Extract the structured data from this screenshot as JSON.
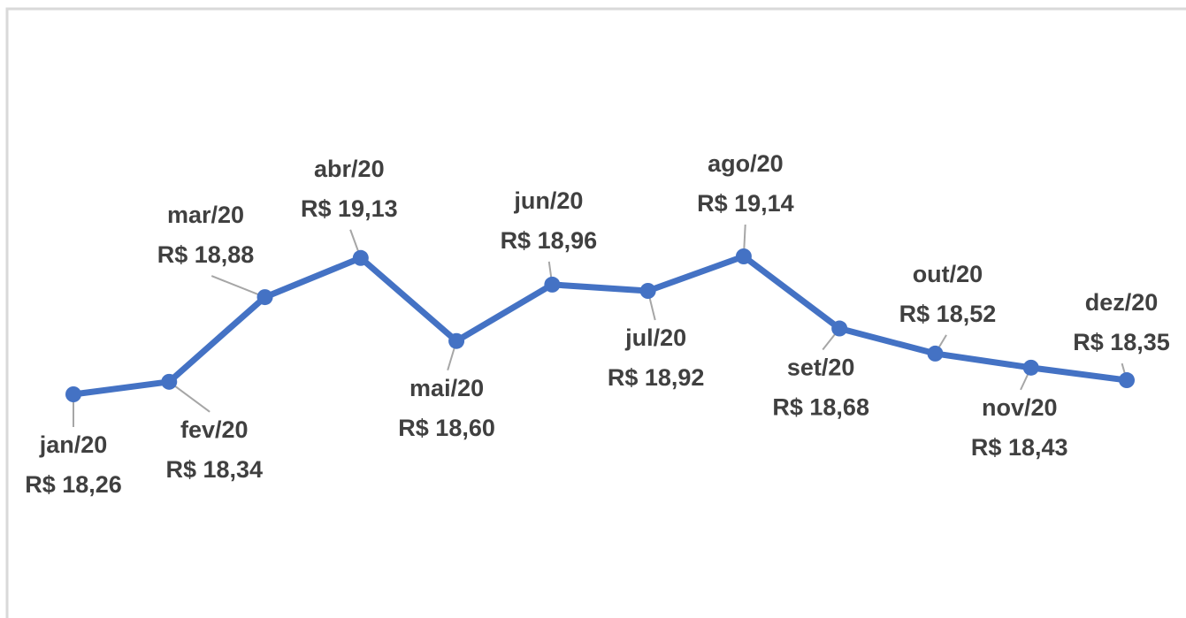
{
  "chart_data": {
    "type": "line",
    "categories": [
      "jan/20",
      "fev/20",
      "mar/20",
      "abr/20",
      "mai/20",
      "jun/20",
      "jul/20",
      "ago/20",
      "set/20",
      "out/20",
      "nov/20",
      "dez/20"
    ],
    "values": [
      18.26,
      18.34,
      18.88,
      19.13,
      18.6,
      18.96,
      18.92,
      19.14,
      18.68,
      18.52,
      18.43,
      18.35
    ],
    "value_labels": [
      "R$ 18,26",
      "R$ 18,34",
      "R$ 18,88",
      "R$ 19,13",
      "R$ 18,60",
      "R$ 18,96",
      "R$ 18,92",
      "R$ 19,14",
      "R$ 18,68",
      "R$ 18,52",
      "R$ 18,43",
      "R$ 18,35"
    ],
    "color": "#4472c4"
  }
}
